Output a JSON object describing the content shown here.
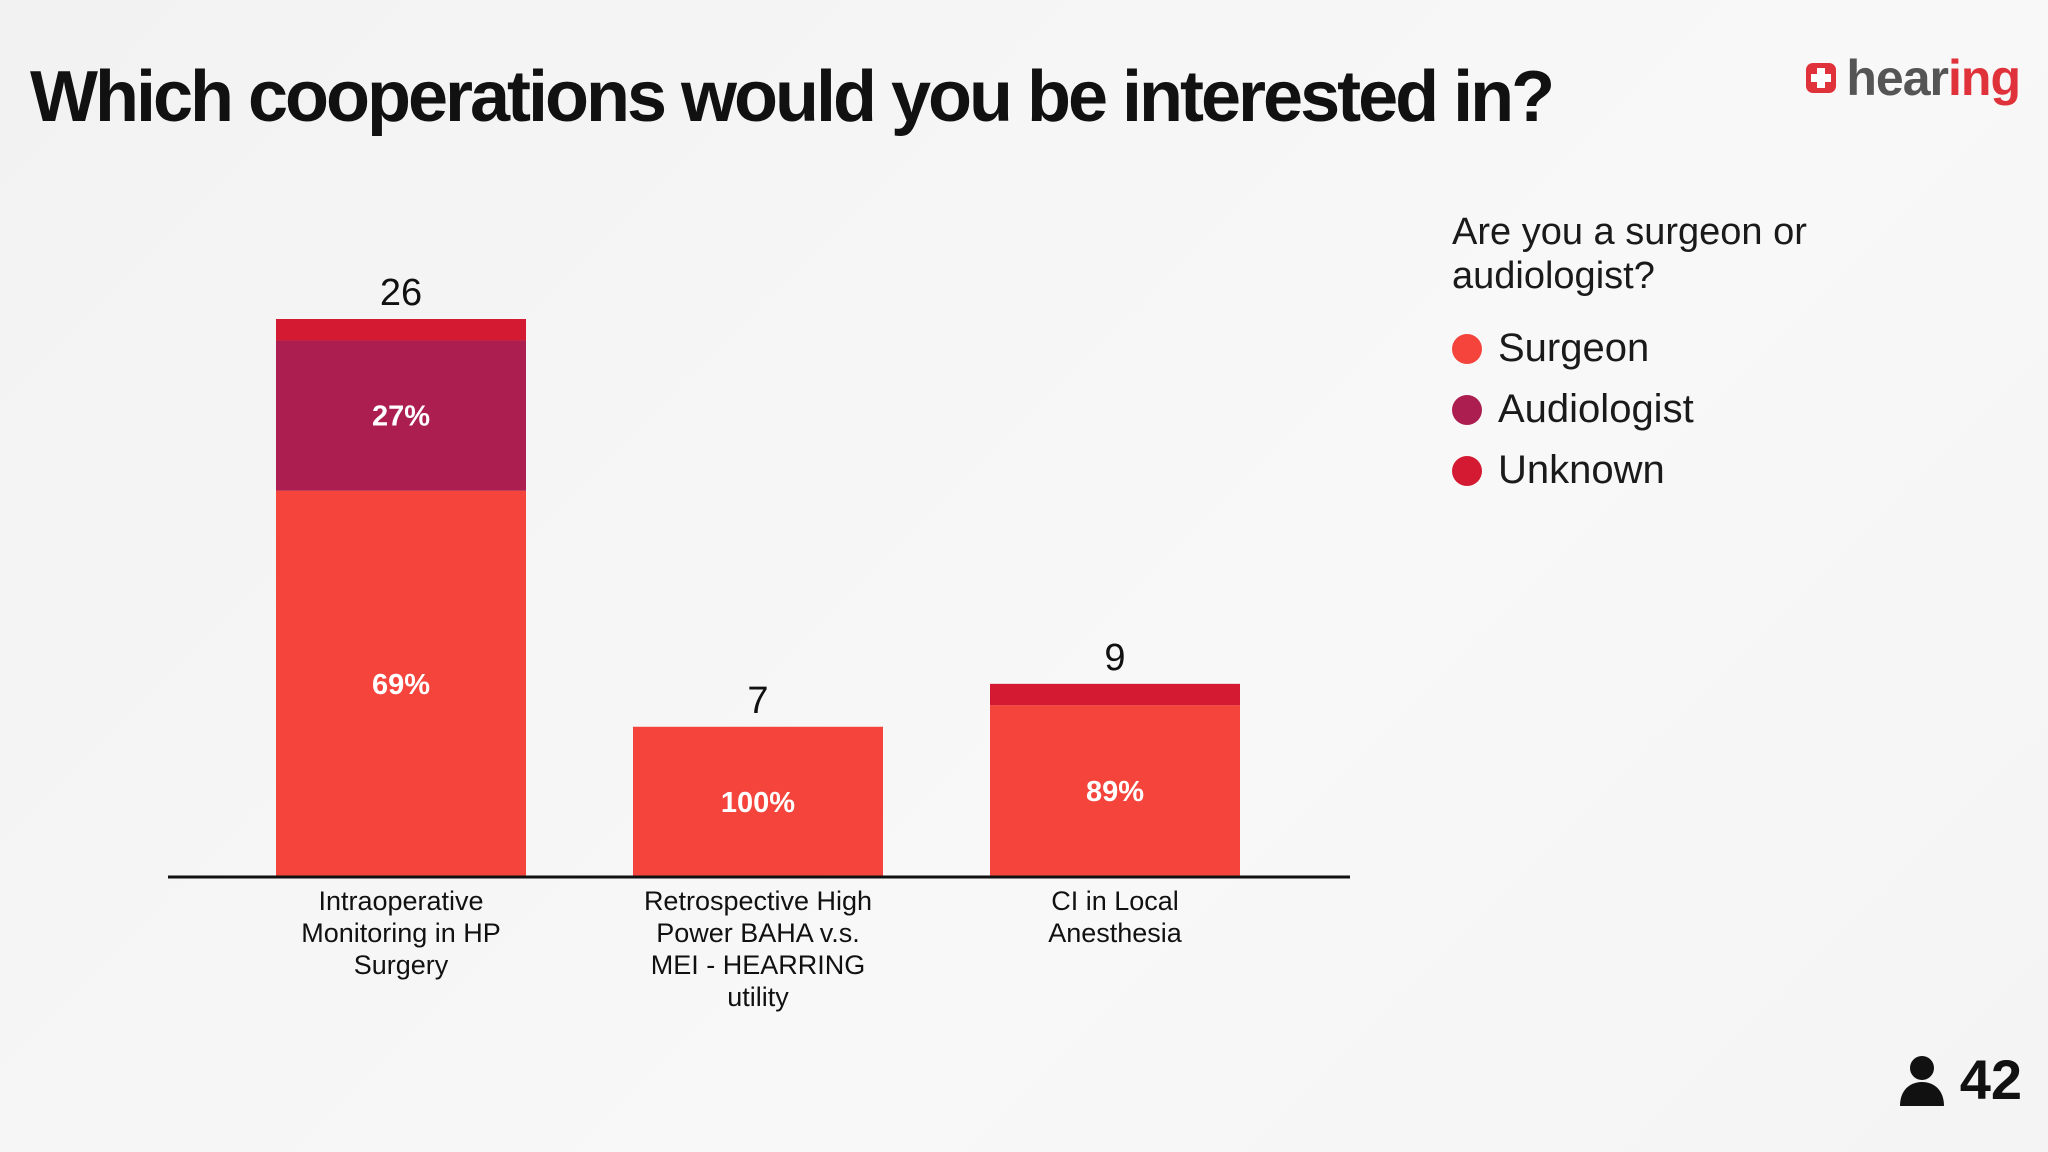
{
  "title": "Which cooperations would you be interested in?",
  "logo": {
    "text_main": "hear",
    "text_accent": "ing"
  },
  "legend": {
    "title": "Are you a surgeon or audiologist?",
    "items": [
      {
        "label": "Surgeon",
        "color": "#f4443b"
      },
      {
        "label": "Audiologist",
        "color": "#ad1e50"
      },
      {
        "label": "Unknown",
        "color": "#d41a32"
      }
    ]
  },
  "responses": {
    "count": "42",
    "icon": "person-icon"
  },
  "chart_data": {
    "type": "bar",
    "stacked": true,
    "categories": [
      "Intraoperative Monitoring in HP Surgery",
      "Retrospective High Power BAHA v.s. MEI - HEARRING utility",
      "CI in Local Anesthesia"
    ],
    "category_lines": [
      [
        "Intraoperative",
        "Monitoring in HP",
        "Surgery"
      ],
      [
        "Retrospective High",
        "Power BAHA v.s.",
        "MEI - HEARRING",
        "utility"
      ],
      [
        "CI in Local",
        "Anesthesia"
      ]
    ],
    "totals": [
      26,
      7,
      9
    ],
    "series": [
      {
        "name": "Surgeon",
        "color": "#f4443b",
        "values": [
          18,
          7,
          8
        ],
        "labels": [
          "69%",
          "100%",
          "89%"
        ]
      },
      {
        "name": "Audiologist",
        "color": "#ad1e50",
        "values": [
          7,
          0,
          0
        ],
        "labels": [
          "27%",
          "",
          ""
        ]
      },
      {
        "name": "Unknown",
        "color": "#d41a32",
        "values": [
          1,
          0,
          1
        ],
        "labels": [
          "",
          "",
          ""
        ]
      }
    ],
    "ylim": [
      0,
      26
    ],
    "grid": false,
    "legend_position": "right",
    "xlabel": "",
    "ylabel": ""
  }
}
